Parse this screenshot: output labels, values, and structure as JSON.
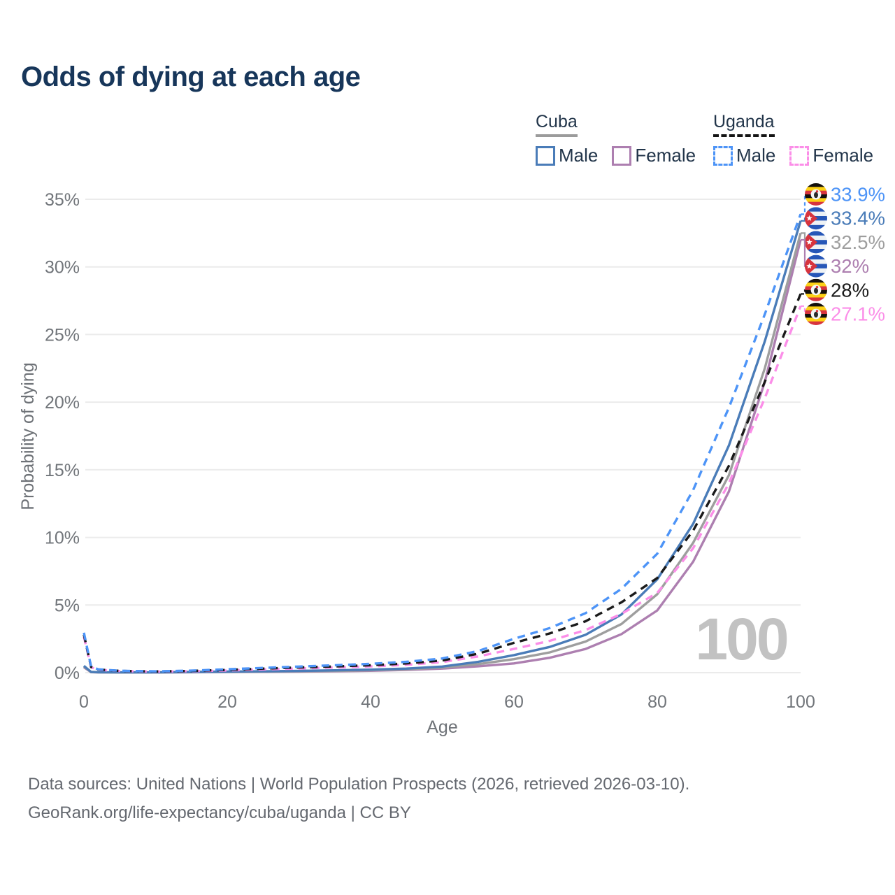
{
  "title": "Odds of dying at each age",
  "watermark": "100",
  "legend": {
    "groups": [
      {
        "label": "Cuba",
        "underline_style": "solid",
        "underline_color": "#9b9b9b",
        "items": [
          {
            "label": "Male",
            "color": "#4a7cb8",
            "dashed": false
          },
          {
            "label": "Female",
            "color": "#ad7fb0",
            "dashed": false
          }
        ]
      },
      {
        "label": "Uganda",
        "underline_style": "dashed",
        "underline_color": "#141414",
        "items": [
          {
            "label": "Male",
            "color": "#4d94f7",
            "dashed": true
          },
          {
            "label": "Female",
            "color": "#fb8ee8",
            "dashed": true
          }
        ]
      }
    ]
  },
  "footer": {
    "line1": "Data sources: United Nations | World Population Prospects (2026, retrieved 2026-03-10).",
    "line2": "GeoRank.org/life-expectancy/cuba/uganda | CC BY"
  },
  "chart_data": {
    "type": "line",
    "title": "Odds of dying at each age",
    "xlabel": "Age",
    "ylabel": "Probability of dying",
    "xlim": [
      0,
      100
    ],
    "ylim": [
      0,
      35
    ],
    "xticks": [
      0,
      20,
      40,
      60,
      80,
      100
    ],
    "yticks": [
      "0%",
      "5%",
      "10%",
      "15%",
      "20%",
      "25%",
      "30%",
      "35%"
    ],
    "grid": true,
    "legend_position": "top-right",
    "age_counter": "100",
    "x": [
      0,
      1,
      2,
      5,
      10,
      15,
      20,
      25,
      30,
      35,
      40,
      45,
      50,
      55,
      60,
      65,
      70,
      75,
      80,
      85,
      90,
      95,
      100
    ],
    "series": [
      {
        "name": "Uganda Male",
        "country": "Uganda",
        "sex": "Male",
        "color": "#4d94f7",
        "dash": true,
        "flag": "uganda",
        "end_label": "33.9%",
        "values": [
          2.95,
          0.45,
          0.25,
          0.14,
          0.1,
          0.15,
          0.25,
          0.35,
          0.45,
          0.55,
          0.65,
          0.8,
          1.05,
          1.6,
          2.5,
          3.3,
          4.4,
          6.2,
          8.8,
          13.5,
          19.6,
          26.5,
          33.9
        ]
      },
      {
        "name": "Cuba Male",
        "country": "Cuba",
        "sex": "Male",
        "color": "#4a7cb8",
        "dash": false,
        "flag": "cuba",
        "end_label": "33.4%",
        "values": [
          0.5,
          0.05,
          0.03,
          0.02,
          0.02,
          0.05,
          0.08,
          0.1,
          0.13,
          0.17,
          0.22,
          0.3,
          0.45,
          0.8,
          1.3,
          1.9,
          2.8,
          4.3,
          6.9,
          11.0,
          16.8,
          24.5,
          33.4
        ]
      },
      {
        "name": "Cuba Both sexes",
        "country": "Cuba",
        "sex": "Both",
        "color": "#9e9e9e",
        "dash": false,
        "flag": "cuba",
        "end_label": "32.5%",
        "values": [
          0.45,
          0.04,
          0.025,
          0.018,
          0.018,
          0.04,
          0.06,
          0.08,
          0.1,
          0.13,
          0.18,
          0.25,
          0.37,
          0.63,
          1.0,
          1.5,
          2.3,
          3.6,
          5.8,
          9.6,
          14.6,
          22.5,
          32.5
        ]
      },
      {
        "name": "Cuba Female",
        "country": "Cuba",
        "sex": "Female",
        "color": "#ad7fb0",
        "dash": false,
        "flag": "cuba",
        "end_label": "32%",
        "values": [
          0.4,
          0.035,
          0.02,
          0.015,
          0.015,
          0.03,
          0.045,
          0.06,
          0.08,
          0.1,
          0.14,
          0.2,
          0.3,
          0.47,
          0.68,
          1.1,
          1.75,
          2.85,
          4.6,
          8.2,
          13.4,
          21.5,
          32.0
        ]
      },
      {
        "name": "Uganda Both sexes",
        "country": "Uganda",
        "sex": "Both",
        "color": "#1a1a1a",
        "dash": true,
        "flag": "uganda",
        "end_label": "28%",
        "values": [
          2.8,
          0.42,
          0.23,
          0.13,
          0.09,
          0.13,
          0.2,
          0.3,
          0.38,
          0.46,
          0.55,
          0.68,
          0.9,
          1.4,
          2.2,
          2.9,
          3.8,
          5.2,
          7.0,
          10.5,
          15.3,
          21.5,
          28.0
        ]
      },
      {
        "name": "Uganda Female",
        "country": "Uganda",
        "sex": "Female",
        "color": "#fb8ee8",
        "dash": true,
        "flag": "uganda",
        "end_label": "27.1%",
        "values": [
          2.65,
          0.4,
          0.21,
          0.12,
          0.08,
          0.11,
          0.16,
          0.24,
          0.31,
          0.38,
          0.46,
          0.58,
          0.78,
          1.2,
          1.75,
          2.35,
          3.15,
          4.35,
          5.9,
          9.2,
          14.0,
          20.3,
          27.1
        ]
      }
    ]
  }
}
